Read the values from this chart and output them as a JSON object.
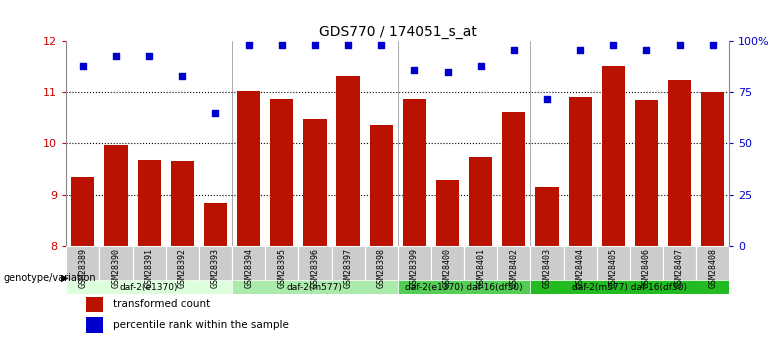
{
  "title": "GDS770 / 174051_s_at",
  "samples": [
    "GSM28389",
    "GSM28390",
    "GSM28391",
    "GSM28392",
    "GSM28393",
    "GSM28394",
    "GSM28395",
    "GSM28396",
    "GSM28397",
    "GSM28398",
    "GSM28399",
    "GSM28400",
    "GSM28401",
    "GSM28402",
    "GSM28403",
    "GSM28404",
    "GSM28405",
    "GSM28406",
    "GSM28407",
    "GSM28408"
  ],
  "bar_values": [
    9.35,
    9.98,
    9.67,
    9.65,
    8.83,
    11.02,
    10.88,
    10.47,
    11.32,
    10.37,
    10.87,
    9.28,
    9.73,
    10.62,
    9.15,
    10.92,
    11.52,
    10.86,
    11.24,
    11.01
  ],
  "percentile_values": [
    88,
    93,
    93,
    83,
    65,
    98,
    98,
    98,
    98,
    98,
    86,
    85,
    88,
    96,
    72,
    96,
    98,
    96,
    98,
    98
  ],
  "ylim_left": [
    8,
    12
  ],
  "ylim_right": [
    0,
    100
  ],
  "yticks_left": [
    8,
    9,
    10,
    11,
    12
  ],
  "yticks_right": [
    0,
    25,
    50,
    75,
    100
  ],
  "ytick_labels_right": [
    "0",
    "25",
    "50",
    "75",
    "100%"
  ],
  "bar_color": "#bb1100",
  "dot_color": "#0000cc",
  "grid_color": "#000000",
  "groups": [
    {
      "label": "daf-2(e1370)",
      "start": 0,
      "end": 5,
      "color": "#ddffdd"
    },
    {
      "label": "daf-2(m577)",
      "start": 5,
      "end": 10,
      "color": "#aaeaaa"
    },
    {
      "label": "daf-2(e1370) daf-16(df50)",
      "start": 10,
      "end": 14,
      "color": "#55cc55"
    },
    {
      "label": "daf-2(m577) daf-16(df50)",
      "start": 14,
      "end": 20,
      "color": "#22bb22"
    }
  ],
  "xlabel_genotype": "genotype/variation",
  "legend_bar_label": "transformed count",
  "legend_dot_label": "percentile rank within the sample",
  "background_color": "#ffffff",
  "tick_label_color_left": "#cc0000",
  "tick_label_color_right": "#0000cc",
  "sample_label_bg": "#cccccc",
  "sample_label_border": "#888888"
}
